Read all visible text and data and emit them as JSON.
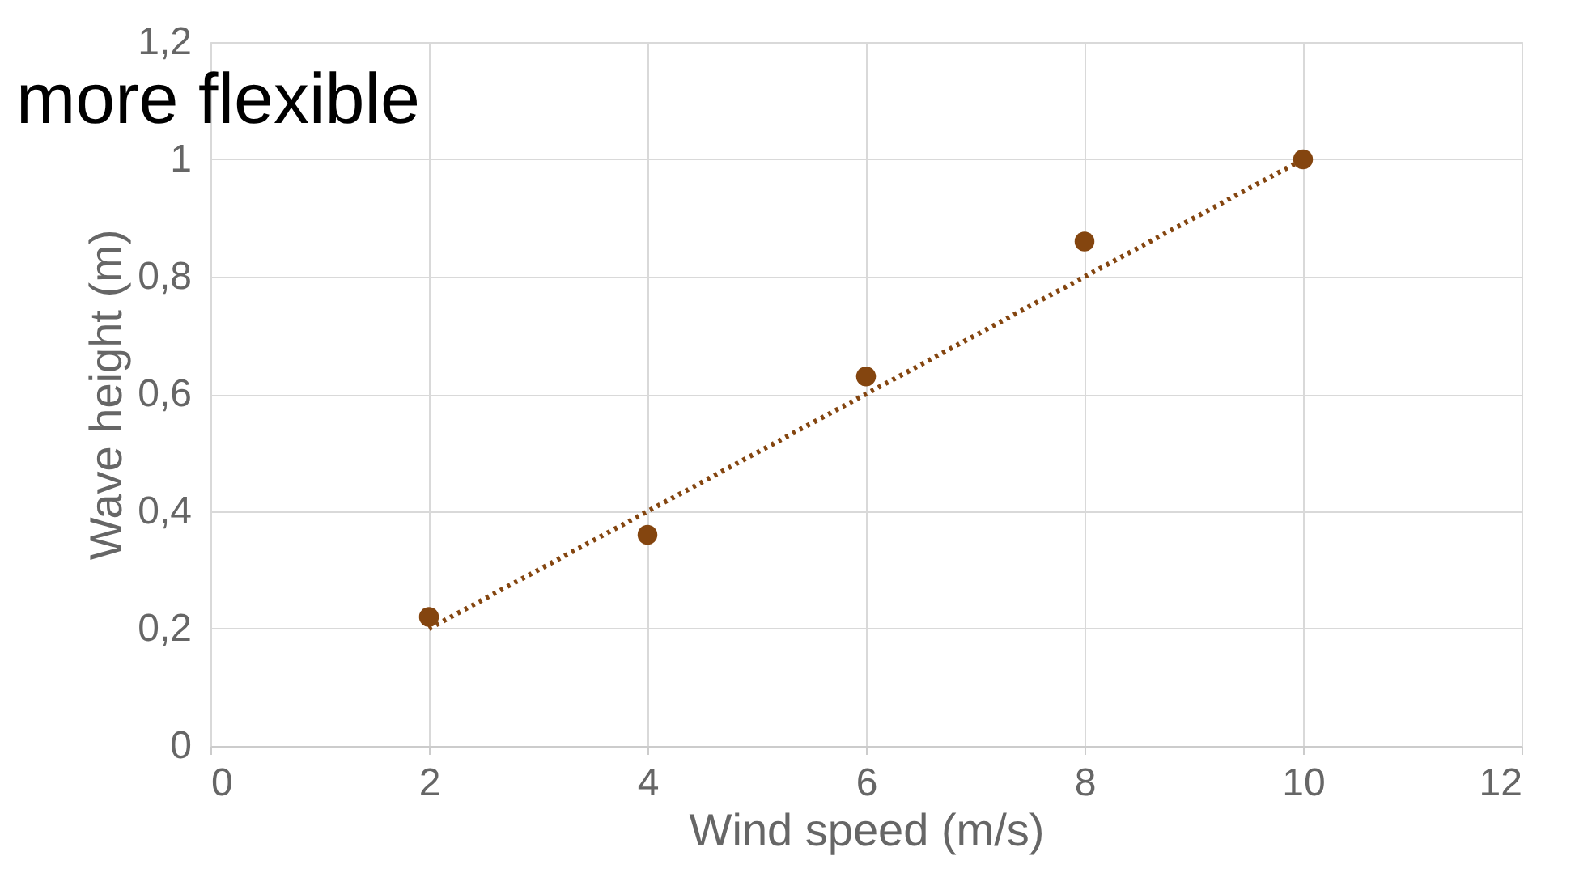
{
  "chart_data": {
    "type": "scatter",
    "xlabel": "Wind speed (m/s)",
    "ylabel": "Wave height (m)",
    "annotations": [
      "more flexible"
    ],
    "x": [
      2,
      4,
      6,
      8,
      10
    ],
    "series": [
      {
        "type": "scatter",
        "color": "#84450f",
        "values": [
          0.22,
          0.36,
          0.63,
          0.86,
          1.0
        ],
        "marker": "circle"
      },
      {
        "type": "line",
        "color": "#84450f",
        "x": [
          2,
          10
        ],
        "values": [
          0.2,
          1.0
        ],
        "line_style": "dotted",
        "marker": "none"
      }
    ],
    "xlim": [
      0,
      12
    ],
    "xticks": [
      0,
      2,
      4,
      6,
      8,
      10,
      12
    ],
    "ylim": [
      0,
      1.2
    ],
    "yticks": [
      0,
      {
        "value": 0.2,
        "label": "0,2"
      },
      {
        "value": 0.4,
        "label": "0,4"
      },
      {
        "value": 0.6,
        "label": "0,6"
      },
      {
        "value": 0.8,
        "label": "0,8"
      },
      1,
      {
        "value": 1.2,
        "label": "1,2"
      }
    ],
    "grid": true
  }
}
